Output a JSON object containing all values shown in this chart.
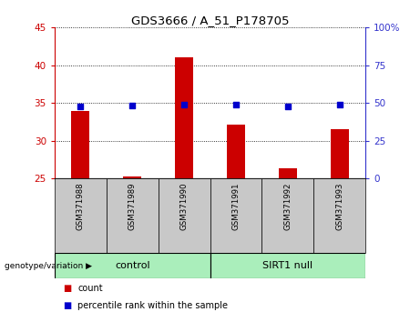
{
  "title": "GDS3666 / A_51_P178705",
  "samples": [
    "GSM371988",
    "GSM371989",
    "GSM371990",
    "GSM371991",
    "GSM371992",
    "GSM371993"
  ],
  "count_values": [
    34.0,
    25.3,
    41.0,
    32.2,
    26.4,
    31.5
  ],
  "count_baseline": 25.0,
  "percentile_values": [
    48.0,
    48.5,
    49.0,
    49.0,
    47.5,
    49.0
  ],
  "ylim_left": [
    25,
    45
  ],
  "ylim_right": [
    0,
    100
  ],
  "yticks_left": [
    25,
    30,
    35,
    40,
    45
  ],
  "yticks_right": [
    0,
    25,
    50,
    75,
    100
  ],
  "ytick_labels_right": [
    "0",
    "25",
    "50",
    "75",
    "100%"
  ],
  "left_color": "#cc0000",
  "right_color": "#3333cc",
  "bar_color": "#cc0000",
  "dot_color": "#0000cc",
  "bg_plot": "#ffffff",
  "control_color": "#aaeebb",
  "sirt1_color": "#aaeebb",
  "group_label_bg": "#c8c8c8",
  "bar_width": 0.35,
  "dot_size": 25,
  "n_control": 3,
  "n_sirt1": 3
}
